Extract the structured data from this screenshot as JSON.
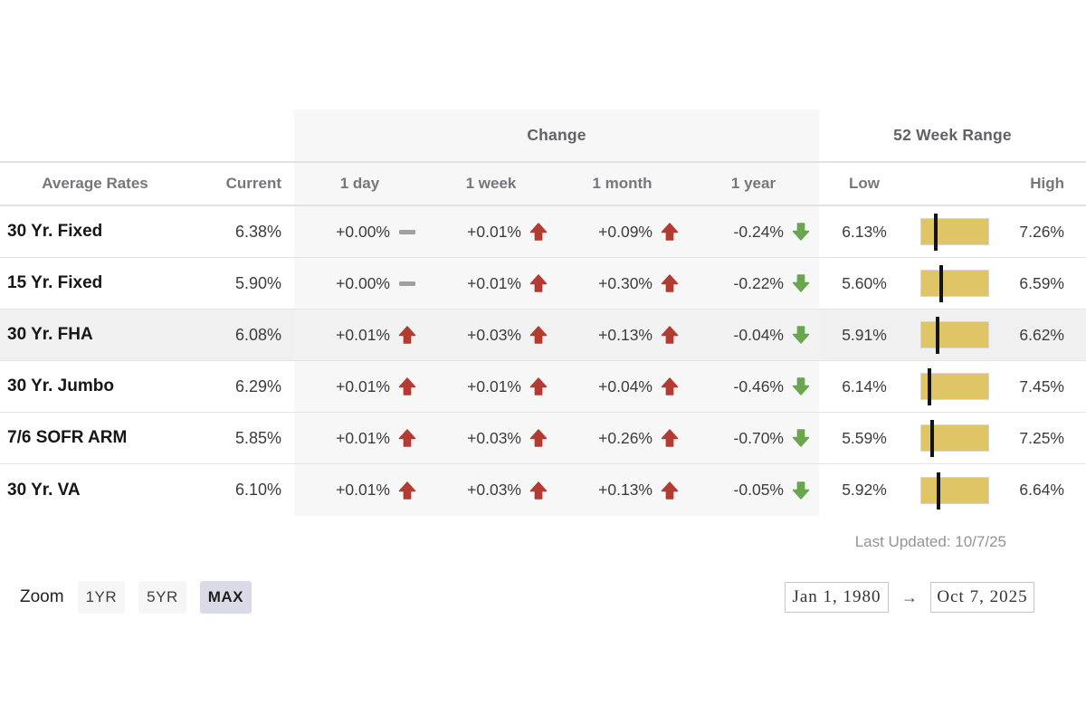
{
  "table": {
    "group_headers": {
      "change": "Change",
      "range": "52 Week Range"
    },
    "columns": {
      "name": "Average Rates",
      "current": "Current",
      "day": "1 day",
      "week": "1 week",
      "month": "1 month",
      "year": "1 year",
      "low": "Low",
      "high": "High"
    },
    "rows": [
      {
        "name": "30 Yr. Fixed",
        "current": "6.38%",
        "day": {
          "value": "+0.00%",
          "dir": "flat"
        },
        "week": {
          "value": "+0.01%",
          "dir": "up"
        },
        "month": {
          "value": "+0.09%",
          "dir": "up"
        },
        "year": {
          "value": "-0.24%",
          "dir": "down"
        },
        "low": "6.13%",
        "high": "7.26%",
        "range_pos": 0.221,
        "highlighted": false
      },
      {
        "name": "15 Yr. Fixed",
        "current": "5.90%",
        "day": {
          "value": "+0.00%",
          "dir": "flat"
        },
        "week": {
          "value": "+0.01%",
          "dir": "up"
        },
        "month": {
          "value": "+0.30%",
          "dir": "up"
        },
        "year": {
          "value": "-0.22%",
          "dir": "down"
        },
        "low": "5.60%",
        "high": "6.59%",
        "range_pos": 0.303,
        "highlighted": false
      },
      {
        "name": "30 Yr. FHA",
        "current": "6.08%",
        "day": {
          "value": "+0.01%",
          "dir": "up"
        },
        "week": {
          "value": "+0.03%",
          "dir": "up"
        },
        "month": {
          "value": "+0.13%",
          "dir": "up"
        },
        "year": {
          "value": "-0.04%",
          "dir": "down"
        },
        "low": "5.91%",
        "high": "6.62%",
        "range_pos": 0.239,
        "highlighted": true
      },
      {
        "name": "30 Yr. Jumbo",
        "current": "6.29%",
        "day": {
          "value": "+0.01%",
          "dir": "up"
        },
        "week": {
          "value": "+0.01%",
          "dir": "up"
        },
        "month": {
          "value": "+0.04%",
          "dir": "up"
        },
        "year": {
          "value": "-0.46%",
          "dir": "down"
        },
        "low": "6.14%",
        "high": "7.45%",
        "range_pos": 0.115,
        "highlighted": false
      },
      {
        "name": "7/6 SOFR ARM",
        "current": "5.85%",
        "day": {
          "value": "+0.01%",
          "dir": "up"
        },
        "week": {
          "value": "+0.03%",
          "dir": "up"
        },
        "month": {
          "value": "+0.26%",
          "dir": "up"
        },
        "year": {
          "value": "-0.70%",
          "dir": "down"
        },
        "low": "5.59%",
        "high": "7.25%",
        "range_pos": 0.157,
        "highlighted": false
      },
      {
        "name": "30 Yr. VA",
        "current": "6.10%",
        "day": {
          "value": "+0.01%",
          "dir": "up"
        },
        "week": {
          "value": "+0.03%",
          "dir": "up"
        },
        "month": {
          "value": "+0.13%",
          "dir": "up"
        },
        "year": {
          "value": "-0.05%",
          "dir": "down"
        },
        "low": "5.92%",
        "high": "6.64%",
        "range_pos": 0.25,
        "highlighted": false
      }
    ],
    "last_updated": "Last Updated: 10/7/25"
  },
  "controls": {
    "zoom_label": "Zoom",
    "zoom_buttons": [
      {
        "label": "1YR",
        "selected": false
      },
      {
        "label": "5YR",
        "selected": false
      },
      {
        "label": "MAX",
        "selected": true
      }
    ],
    "date_from": "Jan 1, 1980",
    "arrow": "→",
    "date_to": "Oct 7, 2025"
  },
  "colors": {
    "up_arrow": "#b23b32",
    "down_arrow": "#69a64f",
    "flat_dash": "#a0a0a0",
    "range_bar": "#dfc566",
    "range_marker": "#141414",
    "change_section_bg": "#f7f7f7",
    "highlight_row_bg": "#f0f0f0",
    "selected_zoom_bg": "#d9dbe7"
  }
}
